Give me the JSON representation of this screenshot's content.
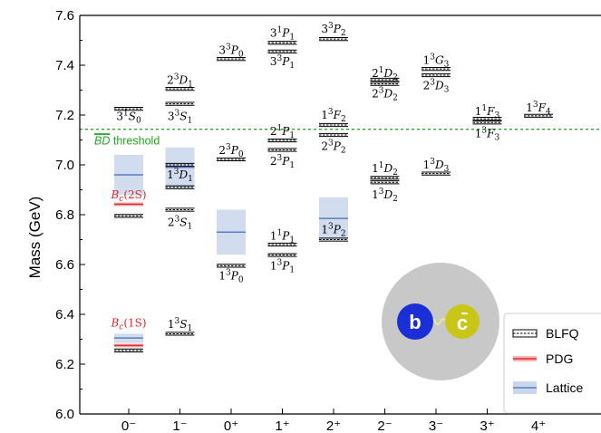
{
  "chart_data": {
    "type": "spectrum-level-diagram",
    "ylabel": "Mass (GeV)",
    "ylim": [
      6.0,
      7.6
    ],
    "yticks": [
      "6.0",
      "6.2",
      "6.4",
      "6.6",
      "6.8",
      "7.0",
      "7.2",
      "7.4",
      "7.6"
    ],
    "categories": [
      "0⁻",
      "1⁻",
      "0⁺",
      "1⁺",
      "2⁺",
      "2⁻",
      "3⁻",
      "3⁺",
      "4⁺"
    ],
    "threshold": {
      "label_over": "BD",
      "label_rest": " threshold",
      "value": 7.143,
      "color": "#2aa82a"
    },
    "series": [
      {
        "name": "BLFQ",
        "levels": [
          {
            "cat": 0,
            "m": 6.255
          },
          {
            "cat": 0,
            "m": 6.795
          },
          {
            "cat": 0,
            "m": 7.225
          },
          {
            "cat": 1,
            "m": 6.322
          },
          {
            "cat": 1,
            "m": 6.82
          },
          {
            "cat": 1,
            "m": 6.91
          },
          {
            "cat": 1,
            "m": 7.0
          },
          {
            "cat": 1,
            "m": 7.245
          },
          {
            "cat": 1,
            "m": 7.305
          },
          {
            "cat": 2,
            "m": 6.595
          },
          {
            "cat": 2,
            "m": 7.022
          },
          {
            "cat": 2,
            "m": 7.425
          },
          {
            "cat": 3,
            "m": 6.638
          },
          {
            "cat": 3,
            "m": 6.68
          },
          {
            "cat": 3,
            "m": 7.06
          },
          {
            "cat": 3,
            "m": 7.098
          },
          {
            "cat": 3,
            "m": 7.455
          },
          {
            "cat": 3,
            "m": 7.49
          },
          {
            "cat": 4,
            "m": 6.7
          },
          {
            "cat": 4,
            "m": 7.12
          },
          {
            "cat": 4,
            "m": 7.16
          },
          {
            "cat": 4,
            "m": 7.505
          },
          {
            "cat": 5,
            "m": 6.93
          },
          {
            "cat": 5,
            "m": 6.948
          },
          {
            "cat": 5,
            "m": 7.325
          },
          {
            "cat": 5,
            "m": 7.342
          },
          {
            "cat": 6,
            "m": 6.965
          },
          {
            "cat": 6,
            "m": 7.36
          },
          {
            "cat": 6,
            "m": 7.385
          },
          {
            "cat": 7,
            "m": 7.17
          },
          {
            "cat": 7,
            "m": 7.185
          },
          {
            "cat": 8,
            "m": 7.197
          }
        ]
      },
      {
        "name": "PDG",
        "color": "#e0282a",
        "levels": [
          {
            "cat": 0,
            "m": 6.275
          },
          {
            "cat": 0,
            "m": 6.842
          }
        ]
      },
      {
        "name": "Lattice",
        "color": "#5a7fc0",
        "levels": [
          {
            "cat": 0,
            "m": 6.305,
            "lo": 6.285,
            "hi": 6.322
          },
          {
            "cat": 0,
            "m": 6.96,
            "lo": 6.88,
            "hi": 7.04
          },
          {
            "cat": 1,
            "m": 6.99,
            "lo": 6.91,
            "hi": 7.07
          },
          {
            "cat": 2,
            "m": 6.73,
            "lo": 6.64,
            "hi": 6.82
          },
          {
            "cat": 4,
            "m": 6.785,
            "lo": 6.7,
            "hi": 6.87
          }
        ]
      }
    ],
    "state_labels": [
      {
        "cat": 0,
        "m": 7.195,
        "pre": "3",
        "sup": "1",
        "L": "S",
        "sub": "0"
      },
      {
        "cat": 1,
        "m": 7.34,
        "pre": "2",
        "sup": "3",
        "L": "D",
        "sub": "1"
      },
      {
        "cat": 1,
        "m": 7.195,
        "pre": "3",
        "sup": "3",
        "L": "S",
        "sub": "1"
      },
      {
        "cat": 1,
        "m": 6.96,
        "pre": "1",
        "sup": "3",
        "L": "D",
        "sub": "1"
      },
      {
        "cat": 1,
        "m": 6.77,
        "pre": "2",
        "sup": "3",
        "L": "S",
        "sub": "1"
      },
      {
        "cat": 1,
        "m": 6.36,
        "pre": "1",
        "sup": "3",
        "L": "S",
        "sub": "1"
      },
      {
        "cat": 2,
        "m": 7.46,
        "pre": "3",
        "sup": "3",
        "L": "P",
        "sub": "0"
      },
      {
        "cat": 2,
        "m": 7.058,
        "pre": "2",
        "sup": "3",
        "L": "P",
        "sub": "0"
      },
      {
        "cat": 2,
        "m": 6.555,
        "pre": "1",
        "sup": "3",
        "L": "P",
        "sub": "0"
      },
      {
        "cat": 3,
        "m": 7.53,
        "pre": "3",
        "sup": "1",
        "L": "P",
        "sub": "1"
      },
      {
        "cat": 3,
        "m": 7.415,
        "pre": "3",
        "sup": "3",
        "L": "P",
        "sub": "1"
      },
      {
        "cat": 3,
        "m": 7.135,
        "pre": "2",
        "sup": "1",
        "L": "P",
        "sub": "1"
      },
      {
        "cat": 3,
        "m": 7.015,
        "pre": "2",
        "sup": "3",
        "L": "P",
        "sub": "1"
      },
      {
        "cat": 3,
        "m": 6.715,
        "pre": "1",
        "sup": "1",
        "L": "P",
        "sub": "1"
      },
      {
        "cat": 3,
        "m": 6.595,
        "pre": "1",
        "sup": "3",
        "L": "P",
        "sub": "1"
      },
      {
        "cat": 4,
        "m": 7.545,
        "pre": "3",
        "sup": "3",
        "L": "P",
        "sub": "2"
      },
      {
        "cat": 4,
        "m": 7.2,
        "pre": "1",
        "sup": "3",
        "L": "F",
        "sub": "2"
      },
      {
        "cat": 4,
        "m": 7.075,
        "pre": "2",
        "sup": "3",
        "L": "P",
        "sub": "2"
      },
      {
        "cat": 4,
        "m": 6.74,
        "pre": "1",
        "sup": "3",
        "L": "P",
        "sub": "2"
      },
      {
        "cat": 5,
        "m": 7.368,
        "pre": "2",
        "sup": "1",
        "L": "D",
        "sub": "2"
      },
      {
        "cat": 5,
        "m": 7.285,
        "pre": "2",
        "sup": "3",
        "L": "D",
        "sub": "2"
      },
      {
        "cat": 5,
        "m": 6.985,
        "pre": "1",
        "sup": "1",
        "L": "D",
        "sub": "2"
      },
      {
        "cat": 5,
        "m": 6.88,
        "pre": "1",
        "sup": "3",
        "L": "D",
        "sub": "2"
      },
      {
        "cat": 6,
        "m": 7.42,
        "pre": "1",
        "sup": "3",
        "L": "G",
        "sub": "3"
      },
      {
        "cat": 6,
        "m": 7.318,
        "pre": "2",
        "sup": "3",
        "L": "D",
        "sub": "3"
      },
      {
        "cat": 6,
        "m": 7.0,
        "pre": "1",
        "sup": "3",
        "L": "D",
        "sub": "3"
      },
      {
        "cat": 7,
        "m": 7.215,
        "pre": "1",
        "sup": "1",
        "L": "F",
        "sub": "3"
      },
      {
        "cat": 7,
        "m": 7.125,
        "pre": "1",
        "sup": "3",
        "L": "F",
        "sub": "3"
      },
      {
        "cat": 8,
        "m": 7.23,
        "pre": "1",
        "sup": "3",
        "L": "F",
        "sub": "4"
      }
    ],
    "pdg_labels": [
      {
        "cat": 0,
        "m": 6.365,
        "name": "B",
        "sub": "c",
        "rest": "(1S)"
      },
      {
        "cat": 0,
        "m": 6.88,
        "name": "B",
        "sub": "c",
        "rest": "(2S)"
      }
    ],
    "legend": {
      "placement": "bottom-right",
      "items": [
        {
          "label": "BLFQ",
          "style": "dashed-box"
        },
        {
          "label": "PDG",
          "style": "red-band"
        },
        {
          "label": "Lattice",
          "style": "blue-band"
        }
      ]
    },
    "inset": {
      "quark": "b",
      "antiquark": "c̄",
      "colors": {
        "ball": "#c8c8c8",
        "b": "#1a2fd6",
        "c": "#c9c617",
        "spring": "#e8e8a0"
      }
    }
  }
}
